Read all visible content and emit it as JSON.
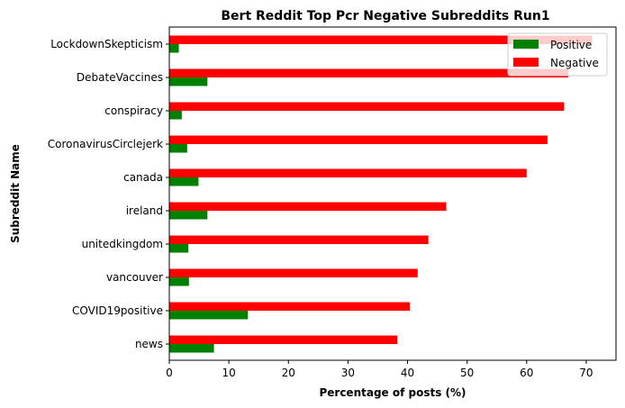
{
  "chart_data": {
    "type": "bar",
    "orientation": "horizontal",
    "title": "Bert Reddit Top Pcr Negative Subreddits Run1",
    "xlabel": "Percentage of posts (%)",
    "ylabel": "Subreddit Name",
    "xlim": [
      0,
      75
    ],
    "xticks": [
      0,
      10,
      20,
      30,
      40,
      50,
      60,
      70
    ],
    "grid": false,
    "legend_position": "top-right",
    "categories": [
      "news",
      "COVID19positive",
      "vancouver",
      "unitedkingdom",
      "ireland",
      "canada",
      "CoronavirusCirclejerk",
      "conspiracy",
      "DebateVaccines",
      "LockdownSkepticism"
    ],
    "series": [
      {
        "name": "Positive",
        "color": "#008000",
        "values": [
          7.5,
          13.2,
          3.3,
          3.2,
          6.4,
          4.9,
          3.0,
          2.1,
          6.4,
          1.6
        ]
      },
      {
        "name": "Negative",
        "color": "#ff0000",
        "values": [
          38.3,
          40.4,
          41.7,
          43.5,
          46.5,
          60.0,
          63.5,
          66.3,
          67.0,
          71.0
        ]
      }
    ]
  }
}
